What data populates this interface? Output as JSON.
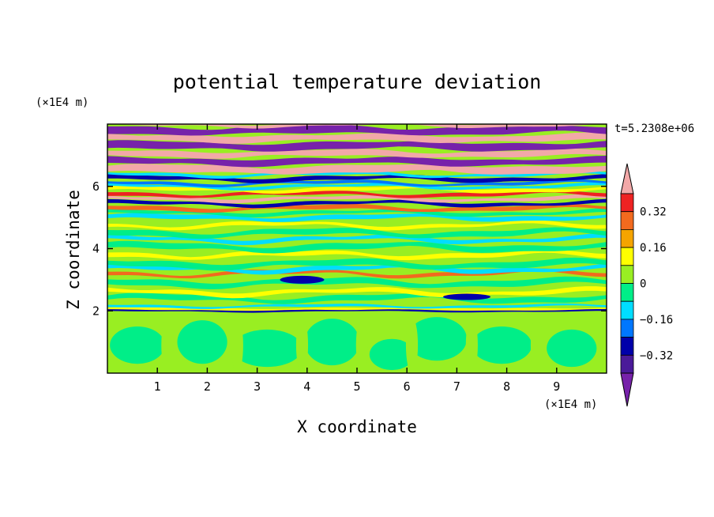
{
  "chart_data": {
    "type": "heatmap",
    "title": "potential temperature deviation",
    "xlabel": "X coordinate",
    "ylabel": "Z coordinate",
    "x_unit": "(×1E4 m)",
    "y_unit": "(×1E4 m)",
    "time_label": "t=5.2308e+06",
    "xlim": [
      0,
      10
    ],
    "ylim": [
      0,
      8
    ],
    "x_ticks": [
      1,
      2,
      3,
      4,
      5,
      6,
      7,
      8,
      9
    ],
    "y_ticks": [
      2,
      4,
      6
    ],
    "colorbar": {
      "levels": [
        -0.4,
        -0.32,
        -0.24,
        -0.16,
        -0.08,
        0,
        0.08,
        0.16,
        0.24,
        0.32,
        0.4
      ],
      "tick_labels": [
        "0.32",
        "0.16",
        "0",
        "−0.16",
        "−0.32"
      ],
      "tick_values": [
        0.32,
        0.16,
        0,
        -0.16,
        -0.32
      ],
      "colors_top_to_bottom": [
        "#f2a8a8",
        "#ee2222",
        "#f26a1e",
        "#f5a400",
        "#ffff00",
        "#99ee22",
        "#00ee88",
        "#00ddff",
        "#0077ff",
        "#0000aa",
        "#4a1a99",
        "#7722aa"
      ]
    },
    "regions": [
      {
        "y_range": [
          0,
          1.98
        ],
        "description_color": "#99ee22",
        "feature": "green cells with cyan-green plumes"
      },
      {
        "y_range": [
          1.98,
          2.15
        ],
        "description_color": "#0000aa",
        "feature": "thin dark interface"
      },
      {
        "y_range": [
          2.15,
          5.0
        ],
        "description_color": "#00ee88",
        "feature": "mixed green with yellow/cyan streaks"
      },
      {
        "y_range": [
          5.0,
          6.4
        ],
        "description_color": "#ee2222",
        "feature": "strongly layered red/blue/orange bands"
      },
      {
        "y_range": [
          6.4,
          8.0
        ],
        "description_color": "#7722aa",
        "feature": "alternating pink and purple bands"
      }
    ]
  }
}
